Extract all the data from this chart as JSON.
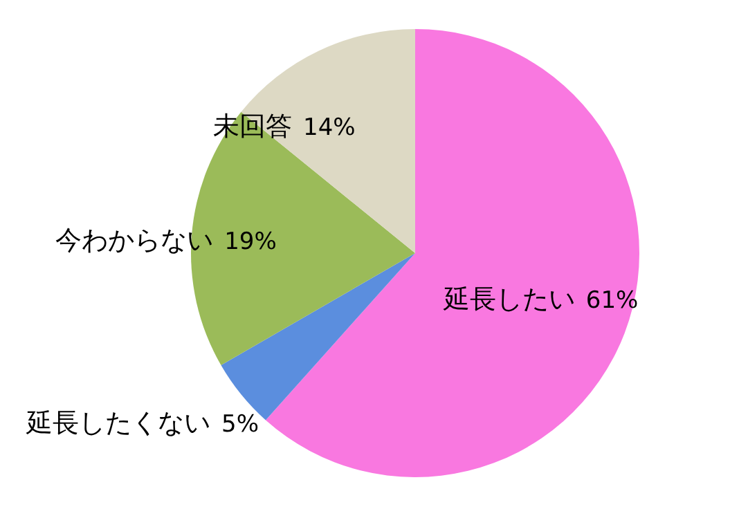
{
  "chart_data": {
    "type": "pie",
    "categories": [
      "延長したい",
      "延長したくない",
      "今わからない",
      "未回答"
    ],
    "values": [
      61,
      5,
      19,
      14
    ],
    "colors": [
      "#f978e0",
      "#5b8ede",
      "#9bbb59",
      "#ddd9c4"
    ],
    "value_labels": [
      "61%",
      "5%",
      "19%",
      "14%"
    ]
  }
}
